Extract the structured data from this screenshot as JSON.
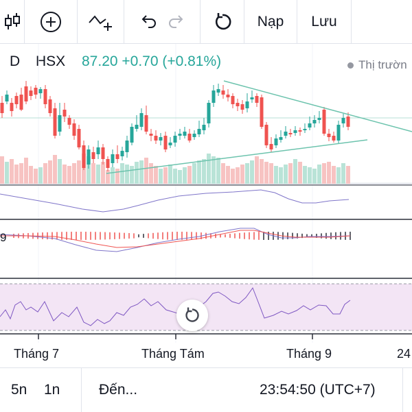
{
  "toolbar": {
    "load_label": "Nạp",
    "save_label": "Lưu"
  },
  "symbol": {
    "interval": "D",
    "exchange": "HSX",
    "price_text": "87.20 +0.70 (+0.81%)"
  },
  "market_status": "Thị trườn",
  "xaxis": {
    "labels": [
      "Tháng 7",
      "Tháng Tám",
      "Tháng 9",
      "24"
    ]
  },
  "macd_label": "9",
  "bottom": {
    "range_5y": "5n",
    "range_1y": "1n",
    "goto_label": "Đến...",
    "clock": "23:54:50 (UTC+7)"
  },
  "colors": {
    "up": "#26a69a",
    "down": "#ef5350",
    "price_up_text": "#26a69a",
    "trendline": "#5fb8a4",
    "macd_line": "#7e57c2",
    "signal_line": "#ef5350",
    "rsi_band": "#f3e5f5"
  },
  "icons": {
    "candles": "candles-icon",
    "add": "add-circle-icon",
    "indicators": "indicators-icon",
    "undo": "undo-icon",
    "redo": "redo-icon",
    "reset": "reset-icon"
  }
}
